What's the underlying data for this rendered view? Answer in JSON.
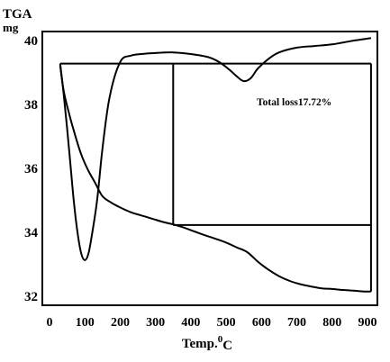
{
  "chart_data": {
    "type": "line",
    "ylabel": "TGA",
    "yunit": "mg",
    "xlabel": "Temp.",
    "xlabel_sup": "0",
    "xlabel_unit": "C",
    "xlim": [
      0,
      920
    ],
    "ylim": [
      31.8,
      40.1
    ],
    "x_ticks": [
      0,
      100,
      200,
      300,
      400,
      500,
      600,
      700,
      800,
      900
    ],
    "x_tick_labels": [
      "0",
      "100",
      "200",
      "300",
      "400",
      "500",
      "600",
      "700",
      "800",
      "900"
    ],
    "y_ticks": [
      32,
      34,
      36,
      38,
      40
    ],
    "y_tick_labels": [
      "32",
      "34",
      "36",
      "38",
      "40"
    ],
    "grid": false,
    "annotation": "Total loss17.72%",
    "series": [
      {
        "x": [
          30,
          40,
          55,
          70,
          90,
          110,
          130,
          150,
          175,
          200,
          230,
          260,
          290,
          320,
          350,
          380,
          410,
          440,
          470,
          500,
          530,
          560,
          590,
          620,
          650,
          680,
          710,
          740,
          770,
          800,
          830,
          860,
          890,
          910
        ],
        "y": [
          39.2,
          38.4,
          37.7,
          37.1,
          36.4,
          35.9,
          35.5,
          35.1,
          34.9,
          34.75,
          34.6,
          34.5,
          34.4,
          34.3,
          34.22,
          34.12,
          34.0,
          33.88,
          33.77,
          33.65,
          33.5,
          33.35,
          33.05,
          32.8,
          32.6,
          32.45,
          32.35,
          32.28,
          32.22,
          32.2,
          32.17,
          32.15,
          32.12,
          32.12
        ]
      },
      {
        "x": [
          30,
          40,
          50,
          60,
          70,
          80,
          90,
          100,
          110,
          120,
          135,
          150,
          170,
          200,
          230,
          260,
          300,
          350,
          400,
          450,
          480,
          510,
          530,
          550,
          570,
          590,
          620,
          650,
          700,
          750,
          800,
          850,
          880,
          910
        ],
        "y": [
          39.25,
          38.3,
          37.2,
          36.0,
          34.8,
          33.9,
          33.3,
          33.1,
          33.3,
          33.9,
          35.0,
          36.6,
          38.2,
          39.3,
          39.5,
          39.55,
          39.58,
          39.6,
          39.55,
          39.45,
          39.3,
          39.05,
          38.85,
          38.7,
          38.8,
          39.1,
          39.4,
          39.6,
          39.75,
          39.8,
          39.85,
          39.95,
          40.0,
          40.05
        ]
      }
    ],
    "reference_lines": [
      {
        "x1": 30,
        "y1": 39.25,
        "x2": 910,
        "y2": 39.25
      },
      {
        "x1": 350,
        "y1": 39.25,
        "x2": 350,
        "y2": 34.2
      },
      {
        "x1": 350,
        "y1": 34.2,
        "x2": 910,
        "y2": 34.2
      },
      {
        "x1": 910,
        "y1": 39.25,
        "x2": 910,
        "y2": 32.12
      }
    ],
    "line_color": "#000000"
  }
}
